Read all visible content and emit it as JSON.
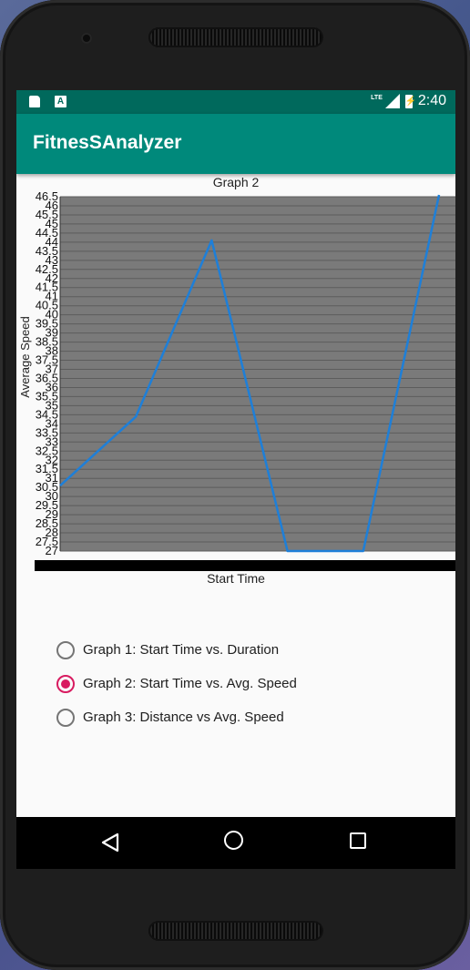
{
  "status_bar": {
    "network": "LTE",
    "time": "2:40",
    "a_badge": "A"
  },
  "app": {
    "title": "FitnesSAnalyzer"
  },
  "graph": {
    "title": "Graph 2",
    "x_title": "Start Time",
    "y_title": "Average Speed"
  },
  "chart_data": {
    "type": "line",
    "title": "Graph 2",
    "xlabel": "Start Time",
    "ylabel": "Average Speed",
    "ylim": [
      27,
      46.5
    ],
    "y_ticks": [
      "27",
      "27.5",
      "28",
      "28.5",
      "29",
      "29.5",
      "30",
      "30.5",
      "31",
      "31.5",
      "32",
      "32.5",
      "33",
      "33.5",
      "34",
      "34.5",
      "35",
      "35.5",
      "36",
      "36.5",
      "37",
      "37.5",
      "38",
      "38.5",
      "39",
      "39.5",
      "40",
      "40.5",
      "41",
      "41.5",
      "42",
      "42.5",
      "43",
      "43.5",
      "44",
      "44.5",
      "45",
      "45.5",
      "46",
      "46.5"
    ],
    "grid": true,
    "series": [
      {
        "x": [
          1,
          2,
          3,
          4,
          5,
          6
        ],
        "values": [
          30.6,
          34.4,
          44.1,
          27,
          27,
          46.6
        ],
        "color": "#1e7fd8"
      }
    ]
  },
  "options": [
    {
      "label": "Graph 1: Start Time vs. Duration",
      "checked": false
    },
    {
      "label": "Graph 2: Start Time vs. Avg. Speed",
      "checked": true
    },
    {
      "label": "Graph 3: Distance vs Avg. Speed",
      "checked": false
    }
  ],
  "nav": {
    "back": "back-icon",
    "home": "home-icon",
    "recent": "recent-apps-icon"
  }
}
